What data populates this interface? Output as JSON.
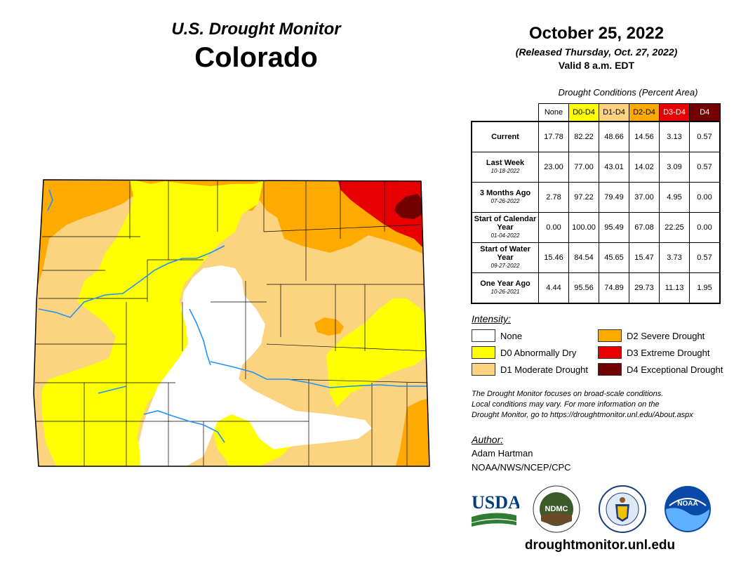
{
  "header": {
    "title": "U.S. Drought Monitor",
    "state": "Colorado"
  },
  "dates": {
    "map_date": "October 25, 2022",
    "released": "(Released Thursday, Oct. 27, 2022)",
    "valid": "Valid 8 a.m. EDT"
  },
  "table": {
    "caption": "Drought Conditions (Percent Area)",
    "columns": [
      {
        "label": "None",
        "bg": "#ffffff",
        "fg": "#000000"
      },
      {
        "label": "D0-D4",
        "bg": "#ffff00",
        "fg": "#000000"
      },
      {
        "label": "D1-D4",
        "bg": "#fcd37f",
        "fg": "#000000"
      },
      {
        "label": "D2-D4",
        "bg": "#ffaa00",
        "fg": "#000000"
      },
      {
        "label": "D3-D4",
        "bg": "#e60000",
        "fg": "#ffffff"
      },
      {
        "label": "D4",
        "bg": "#730000",
        "fg": "#ffffff"
      }
    ],
    "rows": [
      {
        "label": "Current",
        "date": "",
        "values": [
          "17.78",
          "82.22",
          "48.66",
          "14.56",
          "3.13",
          "0.57"
        ]
      },
      {
        "label": "Last Week",
        "date": "10-18-2022",
        "values": [
          "23.00",
          "77.00",
          "43.01",
          "14.02",
          "3.09",
          "0.57"
        ]
      },
      {
        "label": "3 Months Ago",
        "date": "07-26-2022",
        "values": [
          "2.78",
          "97.22",
          "79.49",
          "37.00",
          "4.95",
          "0.00"
        ]
      },
      {
        "label": "Start of Calendar Year",
        "date": "01-04-2022",
        "values": [
          "0.00",
          "100.00",
          "95.49",
          "67.08",
          "22.25",
          "0.00"
        ]
      },
      {
        "label": "Start of Water Year",
        "date": "09-27-2022",
        "values": [
          "15.46",
          "84.54",
          "45.65",
          "15.47",
          "3.73",
          "0.57"
        ]
      },
      {
        "label": "One Year Ago",
        "date": "10-26-2021",
        "values": [
          "4.44",
          "95.56",
          "74.89",
          "29.73",
          "11.13",
          "1.95"
        ]
      }
    ]
  },
  "legend": {
    "title": "Intensity:",
    "items": [
      {
        "label": "None",
        "color": "#ffffff"
      },
      {
        "label": "D2 Severe Drought",
        "color": "#ffaa00"
      },
      {
        "label": "D0 Abnormally Dry",
        "color": "#ffff00"
      },
      {
        "label": "D3 Extreme Drought",
        "color": "#e60000"
      },
      {
        "label": "D1 Moderate Drought",
        "color": "#fcd37f"
      },
      {
        "label": "D4 Exceptional Drought",
        "color": "#730000"
      }
    ]
  },
  "disclaimer": {
    "line1": "The Drought Monitor focuses on broad-scale conditions.",
    "line2": "Local conditions may vary. For more information on the",
    "line3": "Drought Monitor, go to https://droughtmonitor.unl.edu/About.aspx"
  },
  "author": {
    "label": "Author:",
    "name": "Adam Hartman",
    "org": "NOAA/NWS/NCEP/CPC"
  },
  "logos": {
    "usda": "USDA",
    "ndmc": "NDMC",
    "noaa": "NOAA"
  },
  "footer": {
    "url": "droughtmonitor.unl.edu"
  },
  "colors": {
    "none": "#ffffff",
    "d0": "#ffff00",
    "d1": "#fcd37f",
    "d2": "#ffaa00",
    "d3": "#e60000",
    "d4": "#730000",
    "river": "#1e90ff"
  }
}
